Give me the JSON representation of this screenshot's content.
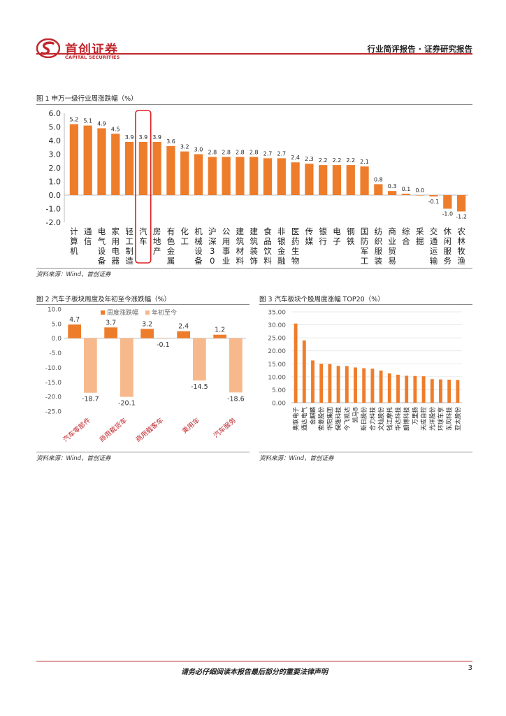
{
  "header": {
    "logo_cn": "首创证券",
    "logo_en": "CAPITAL SECURITIES",
    "report_type": "行业简评报告 · 证券研究报告"
  },
  "colors": {
    "brand_red": "#c0272d",
    "bar_orange": "#ee7d2b",
    "bar_light": "#f7b98c",
    "highlight_red": "#e02020"
  },
  "figure1": {
    "title": "图 1 申万一级行业周涨跌幅（%）",
    "source": "资料来源：Wind，首创证券",
    "chart_data": {
      "type": "bar",
      "title": "申万一级行业周涨跌幅（%）",
      "categories": [
        "计算机",
        "通信",
        "电气设备",
        "家用电器",
        "轻工制造",
        "汽车",
        "房地产",
        "有色金属",
        "化工",
        "机械设备",
        "沪深300",
        "公用事业",
        "建筑材料",
        "建筑装饰",
        "食品饮料",
        "非银金融",
        "医药生物",
        "传媒",
        "银行",
        "电子",
        "钢铁",
        "国防军工",
        "纺织服装",
        "商业贸易",
        "综合",
        "采掘",
        "交通运输",
        "休闲服务",
        "农林牧渔"
      ],
      "values": [
        5.2,
        5.1,
        4.9,
        4.5,
        3.9,
        3.9,
        3.9,
        3.6,
        3.2,
        3.0,
        2.8,
        2.8,
        2.8,
        2.8,
        2.7,
        2.7,
        2.4,
        2.3,
        2.2,
        2.2,
        2.2,
        2.1,
        0.8,
        0.3,
        0.1,
        0.0,
        -0.1,
        -1.0,
        -1.2
      ],
      "labels": [
        "5.2",
        "5.1",
        "4.9",
        "4.5",
        "3.9",
        "3.9",
        "3.9",
        "3.6",
        "3.2",
        "3.0",
        "2.8",
        "2.8",
        "2.8",
        "2.8",
        "2.7",
        "2.7",
        "2.4",
        "2.3",
        "2.2",
        "2.2",
        "2.2",
        "2.1",
        "0.8",
        "0.3",
        "0.1",
        "0.0",
        "-0.1",
        "-1.0",
        "-1.2"
      ],
      "highlight": "汽车",
      "ylim": [
        -2.0,
        6.0
      ],
      "yticks": [
        "6.0",
        "5.0",
        "4.0",
        "3.0",
        "2.0",
        "1.0",
        "0.0",
        "-1.0",
        "-2.0"
      ],
      "grid": false
    }
  },
  "figure2": {
    "title": "图 2 汽车子板块周度及年初至今涨跌幅（%）",
    "source": "资料来源：Wind，首创证券",
    "chart_data": {
      "type": "bar",
      "title": "汽车子板块周度及年初至今涨跌幅（%）",
      "categories": [
        "汽车零部件",
        "商用载货车",
        "商用载客车",
        "乘用车",
        "汽车服务"
      ],
      "series": [
        {
          "name": "周度涨跌幅",
          "values": [
            4.7,
            3.7,
            3.2,
            2.4,
            1.2
          ],
          "labels": [
            "4.7",
            "3.7",
            "3.2",
            "2.4",
            "1.2"
          ]
        },
        {
          "name": "年初至今",
          "values": [
            -18.7,
            -20.1,
            -0.1,
            -14.5,
            -18.6
          ],
          "labels": [
            "-18.7",
            "-20.1",
            "-0.1",
            "-14.5",
            "-18.6"
          ]
        }
      ],
      "ylim": [
        -25.0,
        10.0
      ],
      "yticks": [
        "10.0",
        "5.0",
        "0.0",
        "-5.0",
        "-10.0",
        "-15.0",
        "-20.0",
        "-25.0"
      ],
      "legend": "top-center",
      "grid": false
    }
  },
  "figure3": {
    "title": "图 3 汽车板块个股周度涨幅 TOP20（%）",
    "source": "资料来源：Wind，首创证券",
    "chart_data": {
      "type": "bar",
      "title": "汽车板块个股周度涨幅 TOP20（%）",
      "categories": [
        "奥联电子",
        "通达电气",
        "金麒麟",
        "索菱股份",
        "华阳集团",
        "保隆科技",
        "今飞凯达",
        "凯马B",
        "新日股份",
        "合力科技",
        "文灿股份",
        "钱江摩托",
        "华达科技",
        "朗博科技",
        "万里扬",
        "天成自控",
        "光洋股份",
        "环球车享",
        "东风科技",
        "亚太股份"
      ],
      "values": [
        30.5,
        24.0,
        16.3,
        15.0,
        14.9,
        14.2,
        14.1,
        13.6,
        13.3,
        13.1,
        12.4,
        11.3,
        10.8,
        10.4,
        10.3,
        10.2,
        9.1,
        9.0,
        8.9,
        8.8
      ],
      "ylim": [
        0.0,
        35.0
      ],
      "yticks": [
        "35.00",
        "30.00",
        "25.00",
        "20.00",
        "15.00",
        "10.00",
        "5.00",
        "0.00"
      ],
      "grid": true
    }
  },
  "footer": {
    "disclaimer": "请务必仔细阅读本报告最后部分的重要法律声明",
    "page_number": "3"
  }
}
